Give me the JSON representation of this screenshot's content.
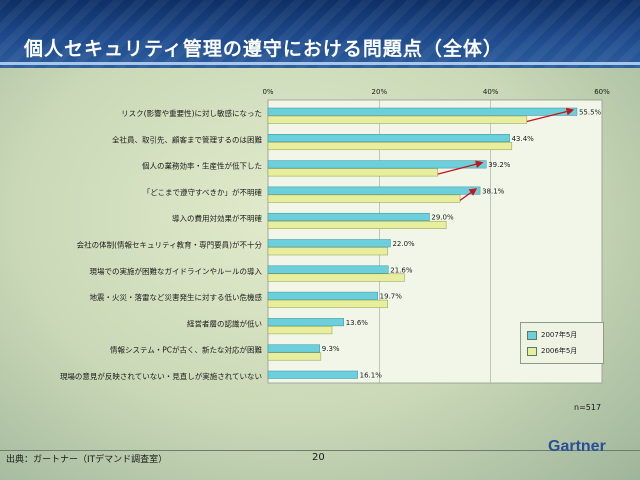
{
  "slide": {
    "title": "個人セキュリティ管理の遵守における問題点（全体）",
    "sample_size": "n=517",
    "source": "出典：ガートナー（ITデマンド調査室）",
    "page_number": "20",
    "brand": "Gartner"
  },
  "colors": {
    "series_2007": "#6cd0dc",
    "series_2006": "#e7ef9f",
    "arrow": "#c4161c"
  },
  "chart_data": {
    "type": "bar",
    "orientation": "horizontal",
    "title": "",
    "xlabel": "",
    "ylabel": "",
    "xlim": [
      0,
      60
    ],
    "x_ticks": [
      "0%",
      "20%",
      "40%",
      "60%"
    ],
    "grid": true,
    "legend_position": "right",
    "categories": [
      "リスク(影響や重要性)に対し敏感になった",
      "全社員、取引先、顧客まで管理するのは困難",
      "個人の業務効率・生産性が低下した",
      "「どこまで遵守すべきか」が不明確",
      "導入の費用対効果が不明確",
      "会社の体制(情報セキュリティ教育・専門要員)が不十分",
      "現場での実施が困難なガイドラインやルールの導入",
      "地震・火災・落雷など災害発生に対する低い危機感",
      "経営者層の認識が低い",
      "情報システム・PCが古く、新たな対応が困難",
      "現場の意見が反映されていない・見直しが実施されていない"
    ],
    "series": [
      {
        "name": "2007年5月",
        "values": [
          55.5,
          43.4,
          39.2,
          38.1,
          29.0,
          22.0,
          21.6,
          19.7,
          13.6,
          9.3,
          16.1
        ],
        "labels": [
          "55.5%",
          "43.4%",
          "39.2%",
          "38.1%",
          "29.0%",
          "22.0%",
          "21.6%",
          "19.7%",
          "13.6%",
          "9.3%",
          "16.1%"
        ]
      },
      {
        "name": "2006年5月",
        "values": [
          46.5,
          43.8,
          30.5,
          34.5,
          32.0,
          21.5,
          24.5,
          21.5,
          11.5,
          9.5,
          null
        ]
      }
    ]
  }
}
